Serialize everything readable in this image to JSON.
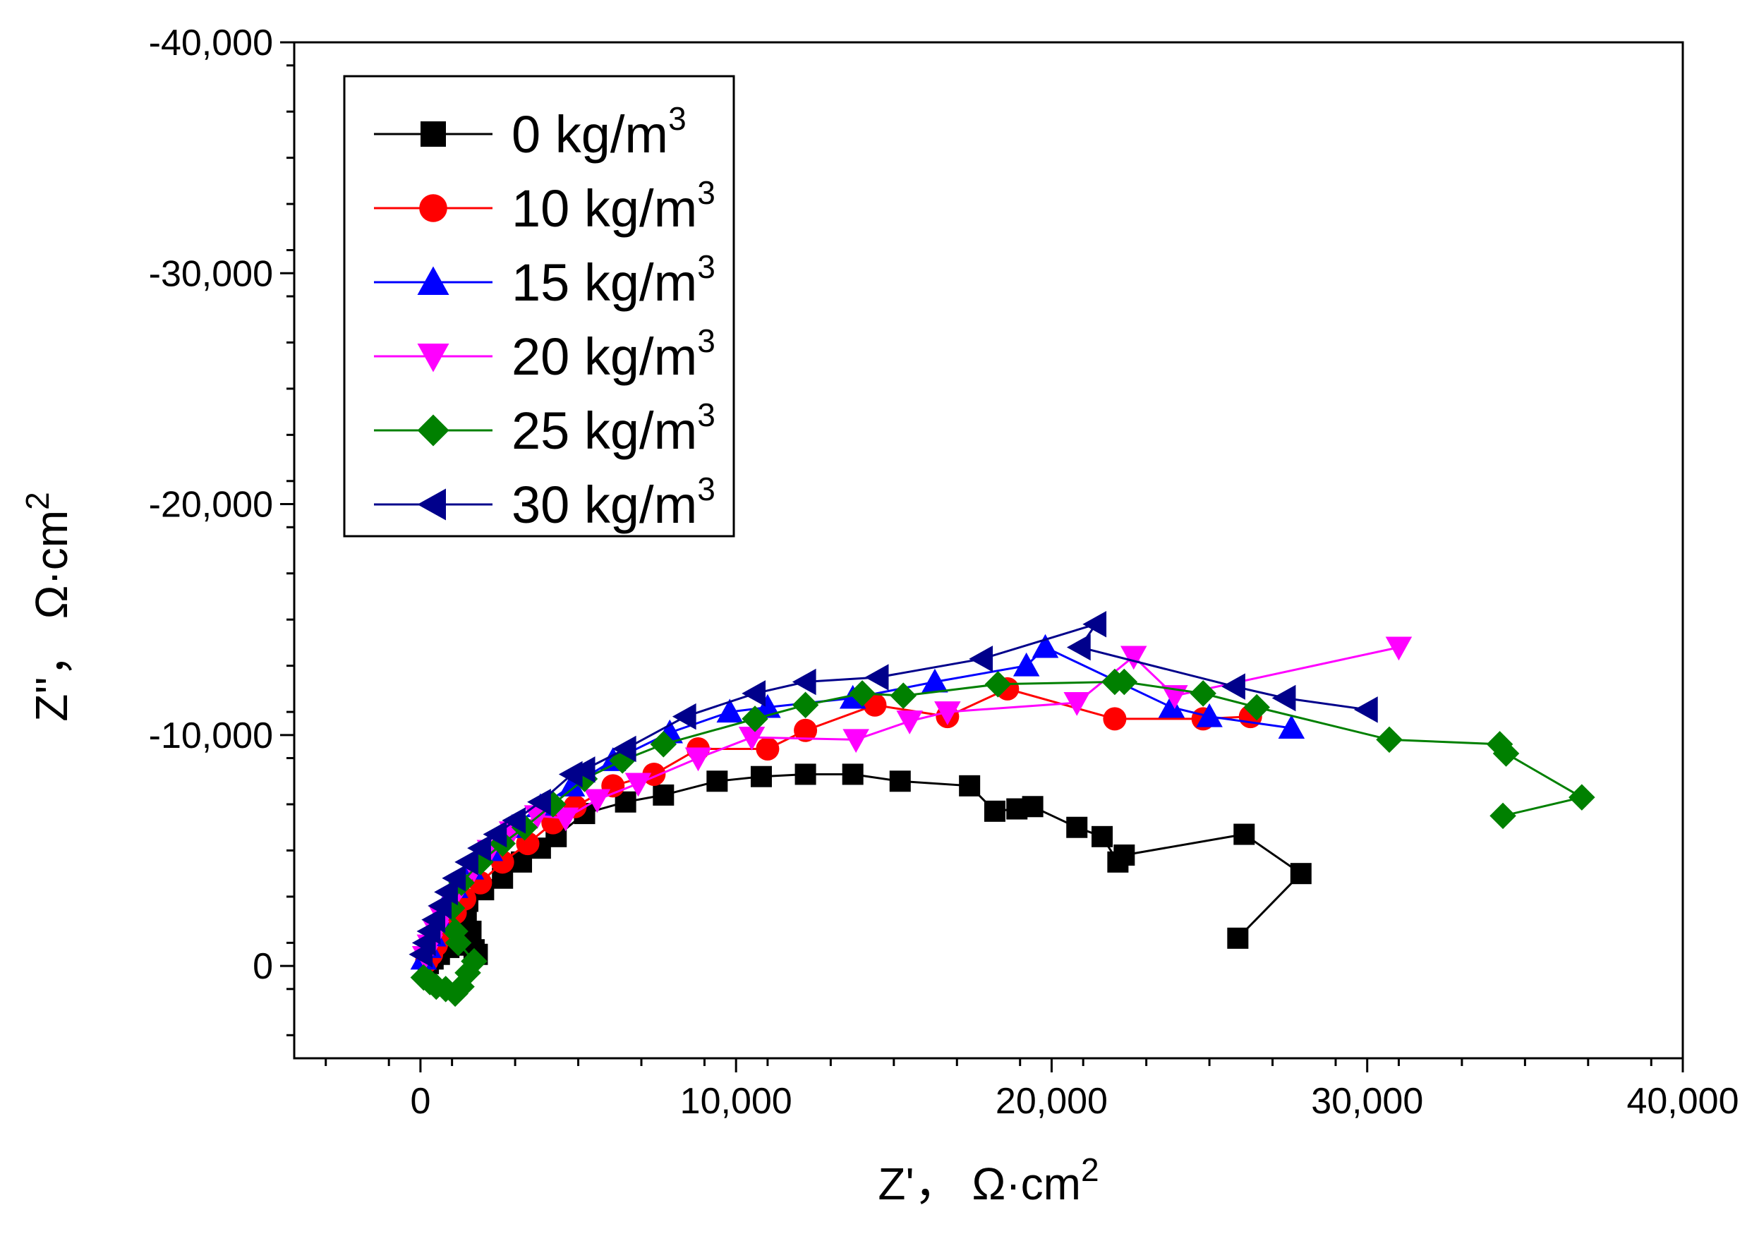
{
  "chart_data": {
    "type": "scatter",
    "title": "",
    "xlabel": "Z'， Ω·cm",
    "xlabel_sup": "2",
    "ylabel": "Z''， Ω·cm",
    "ylabel_sup": "2",
    "xlim": [
      -4000,
      40000
    ],
    "ylim": [
      4000,
      -40000
    ],
    "x_ticks": [
      0,
      10000,
      20000,
      30000,
      40000
    ],
    "x_tick_labels": [
      "0",
      "10,000",
      "20,000",
      "30,000",
      "40,000"
    ],
    "y_ticks": [
      0,
      -10000,
      -20000,
      -30000,
      -40000
    ],
    "y_tick_labels": [
      "0",
      "-10,000",
      "-20,000",
      "-30,000",
      "-40,000"
    ],
    "legend_position": "top-left",
    "series": [
      {
        "name": "0 kg/m",
        "sup": "3",
        "color": "#000000",
        "marker": "square",
        "x": [
          250,
          400,
          600,
          900,
          1200,
          1500,
          1700,
          1800,
          1600,
          1450,
          1500,
          2000,
          2600,
          3200,
          3800,
          4300,
          5200,
          6500,
          7700,
          9400,
          10800,
          12200,
          13700,
          15200,
          17400,
          18200,
          18900,
          19400,
          20800,
          21600,
          22100,
          22300,
          26100,
          27900,
          25900
        ],
        "y": [
          -100,
          -300,
          -500,
          -800,
          -1000,
          -900,
          -700,
          -500,
          -1500,
          -2200,
          -2800,
          -3300,
          -3800,
          -4500,
          -5100,
          -5600,
          -6600,
          -7100,
          -7400,
          -8000,
          -8200,
          -8300,
          -8300,
          -8000,
          -7800,
          -6700,
          -6800,
          -6900,
          -6000,
          -5600,
          -4500,
          -4800,
          -5700,
          -4000,
          -1200
        ]
      },
      {
        "name": "10 kg/m",
        "sup": "3",
        "color": "#ff0000",
        "marker": "circle",
        "x": [
          200,
          350,
          500,
          700,
          900,
          1100,
          1400,
          1900,
          2600,
          3400,
          4200,
          4900,
          6100,
          7400,
          8800,
          11000,
          12200,
          14400,
          16700,
          18600,
          22000,
          24800,
          26300
        ],
        "y": [
          -200,
          -500,
          -900,
          -1300,
          -1800,
          -2300,
          -2900,
          -3600,
          -4500,
          -5300,
          -6200,
          -6900,
          -7800,
          -8300,
          -9400,
          -9400,
          -10200,
          -11300,
          -10800,
          -12000,
          -10700,
          -10700,
          -10800
        ]
      },
      {
        "name": "15 kg/m",
        "sup": "3",
        "color": "#0000ff",
        "marker": "triangle-up",
        "x": [
          100,
          250,
          400,
          600,
          800,
          1100,
          1600,
          2200,
          2900,
          3800,
          4800,
          6100,
          7900,
          9800,
          11000,
          13700,
          16300,
          19200,
          19800,
          23800,
          25000,
          27600
        ],
        "y": [
          -300,
          -800,
          -1300,
          -2000,
          -2700,
          -3400,
          -4200,
          -5000,
          -6000,
          -6900,
          -7800,
          -8900,
          -10100,
          -11000,
          -11200,
          -11600,
          -12300,
          -13000,
          -13800,
          -11200,
          -10800,
          -10300
        ]
      },
      {
        "name": "20 kg/m",
        "sup": "3",
        "color": "#ff00ff",
        "marker": "triangle-down",
        "x": [
          150,
          300,
          500,
          700,
          1000,
          1300,
          1700,
          2200,
          2900,
          3700,
          4600,
          5600,
          6900,
          8800,
          10500,
          13800,
          15500,
          16700,
          20800,
          22600,
          23900,
          31000
        ],
        "y": [
          -400,
          -900,
          -1500,
          -2100,
          -2800,
          -3500,
          -4200,
          -5000,
          -5800,
          -6500,
          -6400,
          -7200,
          -7900,
          -9000,
          -9900,
          -9800,
          -10600,
          -11000,
          -11400,
          -13400,
          -11700,
          -13800
        ]
      },
      {
        "name": "25 kg/m",
        "sup": "3",
        "color": "#008000",
        "marker": "diamond",
        "x": [
          100,
          300,
          500,
          800,
          1100,
          1300,
          1500,
          1700,
          1200,
          1100,
          1000,
          1300,
          1900,
          2600,
          3300,
          4200,
          5200,
          6400,
          7700,
          10600,
          12200,
          14000,
          15300,
          18300,
          22000,
          22300,
          24800,
          26500,
          30700,
          34200,
          34400,
          36800,
          34300
        ],
        "y": [
          500,
          700,
          900,
          1000,
          1200,
          900,
          300,
          -200,
          -1000,
          -1500,
          -2500,
          -3600,
          -4500,
          -5300,
          -6000,
          -7000,
          -8100,
          -8900,
          -9600,
          -10700,
          -11300,
          -11800,
          -11700,
          -12200,
          -12300,
          -12300,
          -11800,
          -11200,
          -9800,
          -9600,
          -9200,
          -7300,
          -6500
        ]
      },
      {
        "name": "30 kg/m",
        "sup": "3",
        "color": "#00008b",
        "marker": "triangle-left",
        "x": [
          50,
          150,
          300,
          450,
          650,
          850,
          1100,
          1500,
          1900,
          2400,
          3000,
          3800,
          4800,
          5200,
          6500,
          8400,
          10600,
          12200,
          14500,
          17800,
          21400,
          20900,
          25800,
          27400,
          30000
        ],
        "y": [
          -500,
          -1000,
          -1500,
          -2000,
          -2600,
          -3200,
          -3800,
          -4500,
          -5100,
          -5700,
          -6300,
          -7100,
          -8300,
          -8500,
          -9400,
          -10800,
          -11800,
          -12300,
          -12500,
          -13300,
          -14800,
          -13800,
          -12100,
          -11600,
          -11100
        ]
      }
    ]
  }
}
